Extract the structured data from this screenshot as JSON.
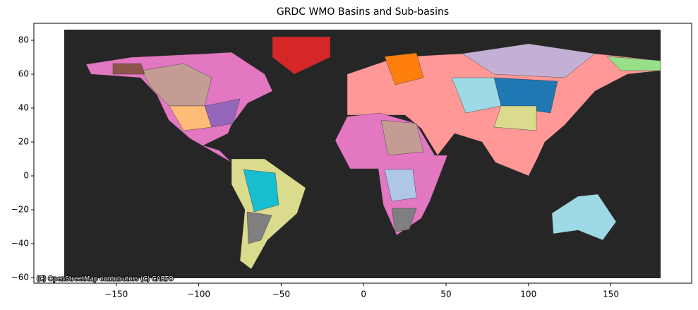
{
  "chart_data": {
    "type": "map",
    "title": "GRDC WMO Basins and Sub-basins",
    "attribution": "(C) OpenStreetMap contributors (C) CARTO",
    "xlim": [
      -200,
      199
    ],
    "ylim": [
      -63.3,
      90
    ],
    "xticks": [
      {
        "value": -150,
        "label": "−150"
      },
      {
        "value": -100,
        "label": "−100"
      },
      {
        "value": -50,
        "label": "−50"
      },
      0,
      50,
      100,
      150
    ],
    "yticks": [
      {
        "value": -60,
        "label": "−60"
      },
      {
        "value": -40,
        "label": "−40"
      },
      {
        "value": -20,
        "label": "−20"
      },
      0,
      20,
      40,
      60,
      80
    ]
  }
}
